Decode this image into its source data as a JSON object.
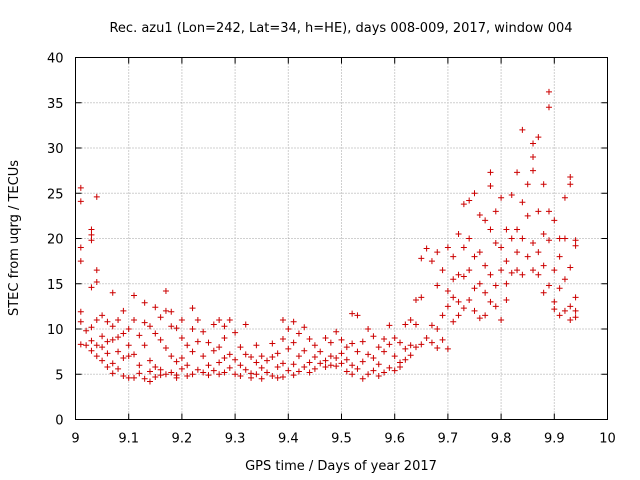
{
  "chart_data": {
    "type": "scatter",
    "title": "Rec. azu1 (Lon=242, Lat=34, h=HE), days 008-009, 2017, window 004",
    "xlabel": "GPS time / Days of year 2017",
    "ylabel": "STEC from uqrg / TECUs",
    "xlim": [
      9,
      10
    ],
    "ylim": [
      0,
      40
    ],
    "x_ticks": [
      9,
      9.1,
      9.2,
      9.3,
      9.4,
      9.5,
      9.6,
      9.7,
      9.8,
      9.9,
      10
    ],
    "x_tick_labels": [
      "9",
      "9.1",
      "9.2",
      "9.3",
      "9.4",
      "9.5",
      "9.6",
      "9.7",
      "9.8",
      "9.9",
      "10"
    ],
    "y_ticks": [
      0,
      5,
      10,
      15,
      20,
      25,
      30,
      35,
      40
    ],
    "y_tick_labels": [
      "0",
      "5",
      "10",
      "15",
      "20",
      "25",
      "30",
      "35",
      "40"
    ],
    "grid": true,
    "marker": "+",
    "color": "#cc0000",
    "points": [
      [
        9.01,
        25.6
      ],
      [
        9.01,
        24.1
      ],
      [
        9.01,
        19.0
      ],
      [
        9.01,
        17.5
      ],
      [
        9.01,
        11.9
      ],
      [
        9.01,
        10.8
      ],
      [
        9.01,
        8.3
      ],
      [
        9.02,
        9.8
      ],
      [
        9.02,
        8.2
      ],
      [
        9.03,
        21.0
      ],
      [
        9.03,
        20.4
      ],
      [
        9.03,
        19.8
      ],
      [
        9.03,
        14.6
      ],
      [
        9.03,
        10.2
      ],
      [
        9.03,
        8.7
      ],
      [
        9.03,
        7.6
      ],
      [
        9.04,
        24.6
      ],
      [
        9.04,
        16.5
      ],
      [
        9.04,
        15.2
      ],
      [
        9.04,
        11.0
      ],
      [
        9.04,
        8.2
      ],
      [
        9.04,
        7.0
      ],
      [
        9.05,
        11.5
      ],
      [
        9.05,
        9.2
      ],
      [
        9.05,
        8.0
      ],
      [
        9.05,
        6.5
      ],
      [
        9.06,
        10.8
      ],
      [
        9.06,
        8.6
      ],
      [
        9.06,
        7.3
      ],
      [
        9.06,
        5.8
      ],
      [
        9.07,
        14.0
      ],
      [
        9.07,
        10.3
      ],
      [
        9.07,
        8.8
      ],
      [
        9.07,
        6.2
      ],
      [
        9.07,
        5.1
      ],
      [
        9.08,
        11.0
      ],
      [
        9.08,
        9.1
      ],
      [
        9.08,
        7.5
      ],
      [
        9.08,
        5.6
      ],
      [
        9.09,
        12.0
      ],
      [
        9.09,
        9.5
      ],
      [
        9.09,
        6.8
      ],
      [
        9.09,
        4.8
      ],
      [
        9.1,
        10.0
      ],
      [
        9.1,
        8.2
      ],
      [
        9.1,
        7.0
      ],
      [
        9.1,
        4.6
      ],
      [
        9.11,
        13.7
      ],
      [
        9.11,
        11.0
      ],
      [
        9.11,
        7.2
      ],
      [
        9.11,
        4.6
      ],
      [
        9.12,
        9.3
      ],
      [
        9.12,
        6.0
      ],
      [
        9.12,
        5.1
      ],
      [
        9.13,
        12.9
      ],
      [
        9.13,
        10.7
      ],
      [
        9.13,
        8.2
      ],
      [
        9.13,
        4.5
      ],
      [
        9.14,
        10.3
      ],
      [
        9.14,
        6.5
      ],
      [
        9.14,
        5.3
      ],
      [
        9.14,
        4.2
      ],
      [
        9.15,
        12.4
      ],
      [
        9.15,
        9.5
      ],
      [
        9.15,
        5.8
      ],
      [
        9.15,
        4.7
      ],
      [
        9.16,
        11.3
      ],
      [
        9.16,
        8.8
      ],
      [
        9.16,
        5.5
      ],
      [
        9.16,
        4.9
      ],
      [
        9.17,
        14.2
      ],
      [
        9.17,
        12.0
      ],
      [
        9.17,
        7.9
      ],
      [
        9.17,
        5.0
      ],
      [
        9.18,
        11.9
      ],
      [
        9.18,
        10.3
      ],
      [
        9.18,
        7.0
      ],
      [
        9.18,
        5.2
      ],
      [
        9.19,
        10.1
      ],
      [
        9.19,
        6.4
      ],
      [
        9.19,
        4.9
      ],
      [
        9.19,
        4.6
      ],
      [
        9.2,
        11.0
      ],
      [
        9.2,
        9.0
      ],
      [
        9.2,
        6.8
      ],
      [
        9.2,
        5.6
      ],
      [
        9.21,
        8.2
      ],
      [
        9.21,
        6.0
      ],
      [
        9.21,
        4.8
      ],
      [
        9.22,
        12.3
      ],
      [
        9.22,
        10.0
      ],
      [
        9.22,
        7.5
      ],
      [
        9.22,
        5.0
      ],
      [
        9.23,
        11.0
      ],
      [
        9.23,
        8.6
      ],
      [
        9.23,
        5.5
      ],
      [
        9.24,
        9.7
      ],
      [
        9.24,
        7.0
      ],
      [
        9.24,
        5.2
      ],
      [
        9.25,
        8.5
      ],
      [
        9.25,
        6.0
      ],
      [
        9.25,
        4.9
      ],
      [
        9.26,
        10.5
      ],
      [
        9.26,
        7.6
      ],
      [
        9.26,
        5.4
      ],
      [
        9.27,
        11.0
      ],
      [
        9.27,
        8.0
      ],
      [
        9.27,
        6.3
      ],
      [
        9.27,
        5.0
      ],
      [
        9.28,
        10.3
      ],
      [
        9.28,
        9.0
      ],
      [
        9.28,
        6.8
      ],
      [
        9.28,
        5.2
      ],
      [
        9.29,
        11.0
      ],
      [
        9.29,
        7.2
      ],
      [
        9.29,
        5.7
      ],
      [
        9.3,
        9.6
      ],
      [
        9.3,
        6.6
      ],
      [
        9.3,
        5.0
      ],
      [
        9.31,
        8.0
      ],
      [
        9.31,
        6.0
      ],
      [
        9.31,
        4.8
      ],
      [
        9.32,
        10.5
      ],
      [
        9.32,
        7.2
      ],
      [
        9.32,
        5.5
      ],
      [
        9.33,
        6.9
      ],
      [
        9.33,
        5.1
      ],
      [
        9.33,
        4.6
      ],
      [
        9.34,
        8.2
      ],
      [
        9.34,
        6.3
      ],
      [
        9.34,
        5.0
      ],
      [
        9.35,
        7.0
      ],
      [
        9.35,
        5.7
      ],
      [
        9.35,
        4.5
      ],
      [
        9.36,
        6.5
      ],
      [
        9.36,
        5.2
      ],
      [
        9.37,
        8.4
      ],
      [
        9.37,
        6.9
      ],
      [
        9.37,
        4.8
      ],
      [
        9.38,
        7.3
      ],
      [
        9.38,
        5.8
      ],
      [
        9.38,
        4.6
      ],
      [
        9.39,
        11.0
      ],
      [
        9.39,
        8.9
      ],
      [
        9.39,
        6.2
      ],
      [
        9.39,
        4.7
      ],
      [
        9.4,
        10.0
      ],
      [
        9.4,
        7.8
      ],
      [
        9.4,
        5.4
      ],
      [
        9.41,
        10.8
      ],
      [
        9.41,
        8.5
      ],
      [
        9.41,
        6.1
      ],
      [
        9.41,
        4.9
      ],
      [
        9.42,
        9.5
      ],
      [
        9.42,
        7.0
      ],
      [
        9.42,
        5.3
      ],
      [
        9.43,
        10.2
      ],
      [
        9.43,
        7.6
      ],
      [
        9.43,
        5.8
      ],
      [
        9.44,
        8.9
      ],
      [
        9.44,
        6.3
      ],
      [
        9.44,
        5.2
      ],
      [
        9.45,
        8.2
      ],
      [
        9.45,
        6.9
      ],
      [
        9.45,
        5.6
      ],
      [
        9.46,
        7.5
      ],
      [
        9.46,
        6.2
      ],
      [
        9.47,
        9.0
      ],
      [
        9.47,
        6.5
      ],
      [
        9.47,
        5.8
      ],
      [
        9.48,
        8.5
      ],
      [
        9.48,
        7.0
      ],
      [
        9.48,
        6.0
      ],
      [
        9.49,
        9.7
      ],
      [
        9.49,
        6.8
      ],
      [
        9.49,
        5.9
      ],
      [
        9.5,
        8.8
      ],
      [
        9.5,
        7.3
      ],
      [
        9.5,
        6.2
      ],
      [
        9.51,
        8.0
      ],
      [
        9.51,
        6.6
      ],
      [
        9.51,
        5.3
      ],
      [
        9.52,
        11.7
      ],
      [
        9.52,
        8.4
      ],
      [
        9.52,
        6.0
      ],
      [
        9.52,
        5.0
      ],
      [
        9.53,
        11.5
      ],
      [
        9.53,
        7.5
      ],
      [
        9.53,
        5.6
      ],
      [
        9.54,
        8.6
      ],
      [
        9.54,
        6.4
      ],
      [
        9.54,
        4.5
      ],
      [
        9.55,
        10.0
      ],
      [
        9.55,
        7.2
      ],
      [
        9.55,
        5.0
      ],
      [
        9.56,
        9.2
      ],
      [
        9.56,
        6.8
      ],
      [
        9.56,
        5.4
      ],
      [
        9.57,
        8.0
      ],
      [
        9.57,
        6.1
      ],
      [
        9.57,
        4.8
      ],
      [
        9.58,
        8.9
      ],
      [
        9.58,
        7.5
      ],
      [
        9.58,
        5.2
      ],
      [
        9.59,
        10.4
      ],
      [
        9.59,
        8.3
      ],
      [
        9.59,
        5.7
      ],
      [
        9.6,
        9.0
      ],
      [
        9.6,
        7.0
      ],
      [
        9.6,
        5.4
      ],
      [
        9.61,
        8.5
      ],
      [
        9.61,
        6.3
      ],
      [
        9.61,
        5.8
      ],
      [
        9.62,
        10.5
      ],
      [
        9.62,
        7.8
      ],
      [
        9.62,
        6.6
      ],
      [
        9.63,
        11.0
      ],
      [
        9.63,
        8.2
      ],
      [
        9.63,
        7.1
      ],
      [
        9.64,
        13.2
      ],
      [
        9.64,
        10.5
      ],
      [
        9.64,
        8.0
      ],
      [
        9.65,
        17.8
      ],
      [
        9.65,
        13.5
      ],
      [
        9.65,
        8.3
      ],
      [
        9.66,
        18.9
      ],
      [
        9.66,
        9.0
      ],
      [
        9.67,
        17.5
      ],
      [
        9.67,
        10.4
      ],
      [
        9.67,
        8.5
      ],
      [
        9.68,
        18.5
      ],
      [
        9.68,
        14.8
      ],
      [
        9.68,
        10.0
      ],
      [
        9.68,
        7.9
      ],
      [
        9.69,
        16.5
      ],
      [
        9.69,
        11.5
      ],
      [
        9.69,
        8.8
      ],
      [
        9.7,
        19.0
      ],
      [
        9.7,
        14.2
      ],
      [
        9.7,
        12.5
      ],
      [
        9.7,
        7.8
      ],
      [
        9.71,
        18.0
      ],
      [
        9.71,
        15.5
      ],
      [
        9.71,
        13.5
      ],
      [
        9.71,
        10.8
      ],
      [
        9.72,
        20.5
      ],
      [
        9.72,
        16.0
      ],
      [
        9.72,
        13.0
      ],
      [
        9.72,
        11.5
      ],
      [
        9.73,
        23.8
      ],
      [
        9.73,
        19.0
      ],
      [
        9.73,
        15.8
      ],
      [
        9.73,
        12.3
      ],
      [
        9.74,
        24.2
      ],
      [
        9.74,
        20.0
      ],
      [
        9.74,
        16.5
      ],
      [
        9.74,
        13.2
      ],
      [
        9.75,
        25.0
      ],
      [
        9.75,
        18.0
      ],
      [
        9.75,
        14.5
      ],
      [
        9.75,
        12.0
      ],
      [
        9.76,
        22.6
      ],
      [
        9.76,
        18.5
      ],
      [
        9.76,
        15.0
      ],
      [
        9.76,
        11.2
      ],
      [
        9.77,
        22.0
      ],
      [
        9.77,
        17.0
      ],
      [
        9.77,
        14.0
      ],
      [
        9.77,
        11.5
      ],
      [
        9.78,
        27.3
      ],
      [
        9.78,
        25.8
      ],
      [
        9.78,
        21.0
      ],
      [
        9.78,
        16.0
      ],
      [
        9.78,
        13.0
      ],
      [
        9.79,
        23.0
      ],
      [
        9.79,
        19.5
      ],
      [
        9.79,
        14.8
      ],
      [
        9.79,
        12.5
      ],
      [
        9.8,
        24.5
      ],
      [
        9.8,
        19.0
      ],
      [
        9.8,
        16.5
      ],
      [
        9.8,
        11.0
      ],
      [
        9.81,
        21.0
      ],
      [
        9.81,
        17.5
      ],
      [
        9.81,
        15.0
      ],
      [
        9.81,
        13.2
      ],
      [
        9.82,
        24.8
      ],
      [
        9.82,
        20.0
      ],
      [
        9.82,
        16.2
      ],
      [
        9.83,
        27.3
      ],
      [
        9.83,
        21.0
      ],
      [
        9.83,
        18.5
      ],
      [
        9.83,
        16.5
      ],
      [
        9.84,
        32.0
      ],
      [
        9.84,
        24.0
      ],
      [
        9.84,
        20.0
      ],
      [
        9.84,
        16.0
      ],
      [
        9.85,
        26.0
      ],
      [
        9.85,
        22.5
      ],
      [
        9.85,
        18.0
      ],
      [
        9.86,
        30.5
      ],
      [
        9.86,
        29.0
      ],
      [
        9.86,
        27.5
      ],
      [
        9.86,
        19.5
      ],
      [
        9.86,
        16.5
      ],
      [
        9.87,
        31.2
      ],
      [
        9.87,
        23.0
      ],
      [
        9.87,
        18.5
      ],
      [
        9.87,
        16.0
      ],
      [
        9.88,
        26.0
      ],
      [
        9.88,
        20.5
      ],
      [
        9.88,
        17.0
      ],
      [
        9.88,
        14.0
      ],
      [
        9.89,
        36.2
      ],
      [
        9.89,
        34.5
      ],
      [
        9.89,
        23.0
      ],
      [
        9.89,
        19.8
      ],
      [
        9.89,
        14.8
      ],
      [
        9.9,
        22.0
      ],
      [
        9.9,
        16.5
      ],
      [
        9.9,
        13.0
      ],
      [
        9.9,
        12.2
      ],
      [
        9.91,
        20.0
      ],
      [
        9.91,
        18.0
      ],
      [
        9.91,
        14.5
      ],
      [
        9.91,
        11.5
      ],
      [
        9.92,
        24.5
      ],
      [
        9.92,
        20.0
      ],
      [
        9.92,
        15.5
      ],
      [
        9.92,
        12.0
      ],
      [
        9.93,
        26.8
      ],
      [
        9.93,
        26.0
      ],
      [
        9.93,
        16.8
      ],
      [
        9.93,
        12.5
      ],
      [
        9.93,
        11.0
      ],
      [
        9.94,
        19.8
      ],
      [
        9.94,
        19.2
      ],
      [
        9.94,
        13.5
      ],
      [
        9.94,
        12.0
      ],
      [
        9.94,
        11.3
      ]
    ]
  }
}
